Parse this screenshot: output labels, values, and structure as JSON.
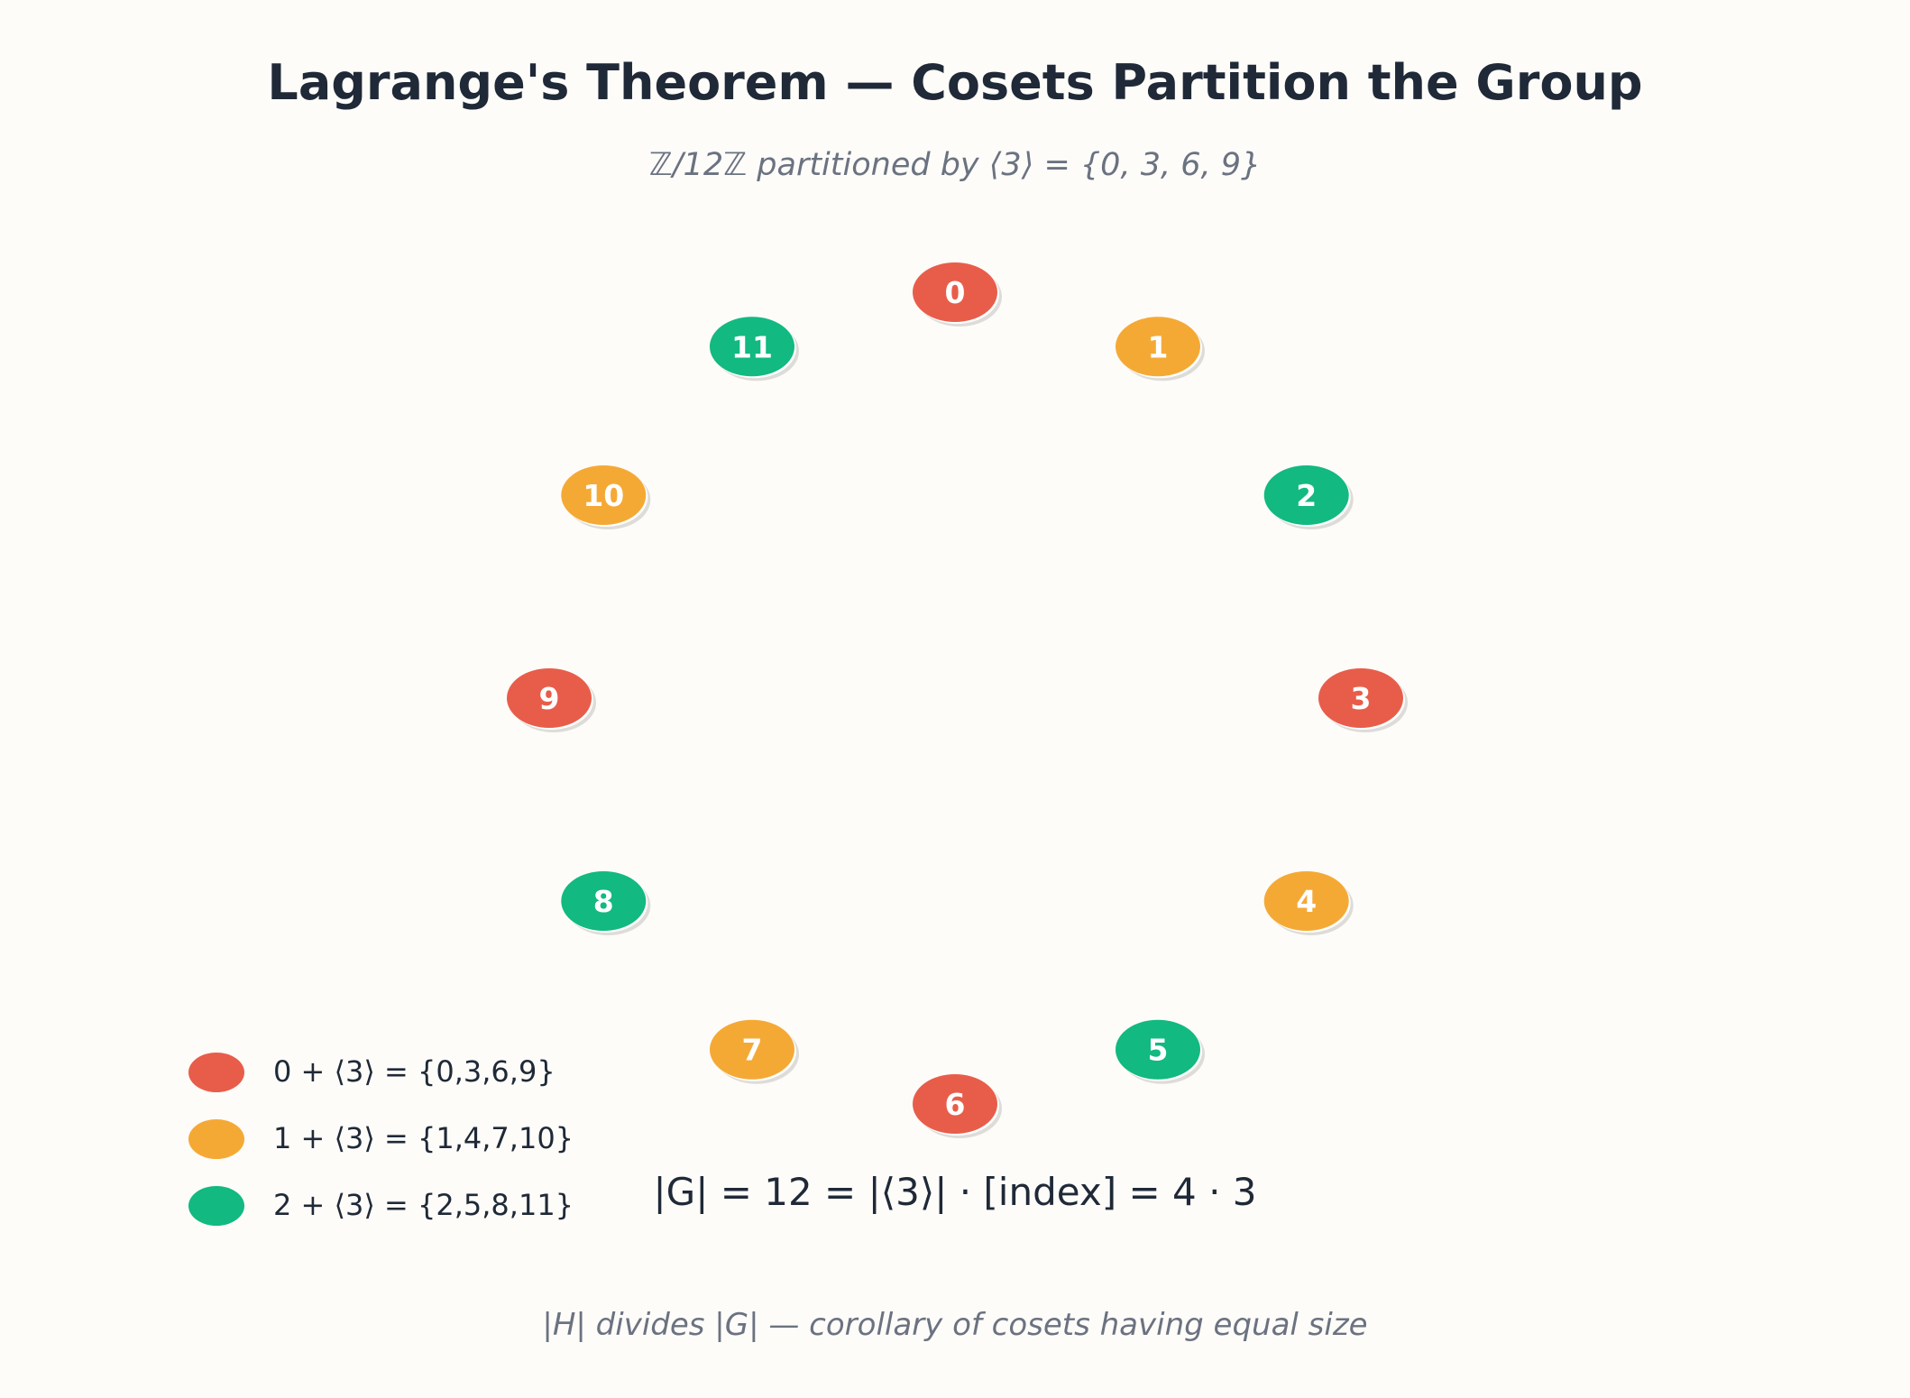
{
  "title": "Lagrange's Theorem — Cosets Partition the Group",
  "subtitle": "ℤ/12ℤ partitioned by ⟨3⟩ = {0, 3, 6, 9}",
  "colors": {
    "coset_0": "#e85d4a",
    "coset_1": "#f5a935",
    "coset_2": "#12b981",
    "text_dark": "#1f2937",
    "text_muted": "#6b7280",
    "background": "#fdfcf9"
  },
  "elements": [
    {
      "label": "0",
      "coset": 0
    },
    {
      "label": "1",
      "coset": 1
    },
    {
      "label": "2",
      "coset": 2
    },
    {
      "label": "3",
      "coset": 0
    },
    {
      "label": "4",
      "coset": 1
    },
    {
      "label": "5",
      "coset": 2
    },
    {
      "label": "6",
      "coset": 0
    },
    {
      "label": "7",
      "coset": 1
    },
    {
      "label": "8",
      "coset": 2
    },
    {
      "label": "9",
      "coset": 0
    },
    {
      "label": "10",
      "coset": 1
    },
    {
      "label": "11",
      "coset": 2
    }
  ],
  "legend": [
    {
      "label": "0 + ⟨3⟩ = {0,3,6,9}",
      "color": "#e85d4a"
    },
    {
      "label": "1 + ⟨3⟩ = {1,4,7,10}",
      "color": "#f5a935"
    },
    {
      "label": "2 + ⟨3⟩ = {2,5,8,11}",
      "color": "#12b981"
    }
  ],
  "formula": "|G| = 12 = |⟨3⟩| · [index] = 4 · 3",
  "footer": "|H| divides |G| — corollary of cosets having equal size"
}
